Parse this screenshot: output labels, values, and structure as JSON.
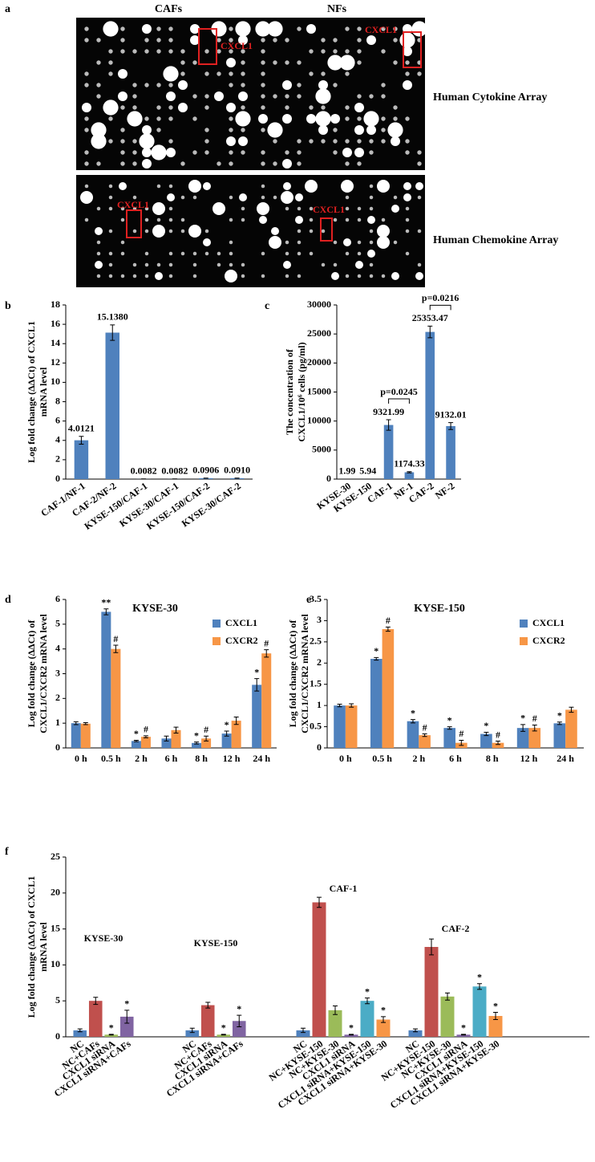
{
  "panel_a": {
    "panel": "a",
    "columns": [
      "CAFs",
      "NFs"
    ],
    "rows": [
      {
        "title": "Human Cytokine Array",
        "labels": [
          "CXCL1",
          "CXCL1"
        ]
      },
      {
        "title": "Human Chemokine Array",
        "labels": [
          "CXCL1",
          "CXCL1"
        ]
      }
    ]
  },
  "chart_data": [
    {
      "type": "bar",
      "panel": "b",
      "y_label": [
        "Log fold change (ΔΔCt) of CXCL1",
        "mRNA level"
      ],
      "categories": [
        "CAF-1/NF-1",
        "CAF-2/NF-2",
        "KYSE-150/CAF-1",
        "KYSE-30/CAF-1",
        "KYSE-150/CAF-2",
        "KYSE-30/CAF-2"
      ],
      "values": [
        4.0121,
        15.138,
        0.0082,
        0.0082,
        0.0906,
        0.091
      ],
      "value_labels": [
        "4.0121",
        "15.1380",
        "0.0082",
        "0.0082",
        "0.0906",
        "0.0910"
      ],
      "errors": [
        0.4,
        0.8,
        0.01,
        0.01,
        0.01,
        0.01
      ],
      "color": "#4f81bd",
      "ylim": [
        0,
        18
      ],
      "yticks": [
        0,
        2,
        4,
        6,
        8,
        10,
        12,
        14,
        16,
        18
      ]
    },
    {
      "type": "bar",
      "panel": "c",
      "y_label": [
        "The concentration of",
        "CXCL1/10⁶ cells  (pg/ml)"
      ],
      "categories": [
        "KYSE-30",
        "KYSE-150",
        "CAF-1",
        "NF-1",
        "CAF-2",
        "NF-2"
      ],
      "values": [
        1.99,
        5.94,
        9321.99,
        1174.33,
        25353.47,
        9132.01
      ],
      "errors": [
        0,
        0,
        900,
        100,
        1000,
        600
      ],
      "color": "#4f81bd",
      "brackets": [
        {
          "between": [
            "CAF-1",
            "NF-1"
          ],
          "label": "p=0.0245"
        },
        {
          "between": [
            "CAF-2",
            "NF-2"
          ],
          "label": "p=0.0216"
        }
      ],
      "ylim": [
        0,
        30000
      ],
      "yticks": [
        0,
        5000,
        10000,
        15000,
        20000,
        25000,
        30000
      ]
    },
    {
      "type": "grouped_bar",
      "panel": "d",
      "title": "KYSE-30",
      "y_label": [
        "Log fold change (ΔΔCt) of",
        "CXCL1/CXCR2 mRNA level"
      ],
      "categories": [
        "0 h",
        "0.5 h",
        "2 h",
        "6 h",
        "8 h",
        "12 h",
        "24 h"
      ],
      "series": [
        {
          "name": "CXCL1",
          "color": "#4f81bd",
          "values": [
            1.0,
            5.5,
            0.28,
            0.38,
            0.2,
            0.58,
            2.55
          ],
          "errors": [
            0.06,
            0.12,
            0.03,
            0.1,
            0.04,
            0.1,
            0.25
          ],
          "markers": [
            null,
            "**",
            "*",
            null,
            "*",
            "*",
            "*"
          ]
        },
        {
          "name": "CXCR2",
          "color": "#f79646",
          "values": [
            0.98,
            4.0,
            0.45,
            0.72,
            0.38,
            1.1,
            3.82
          ],
          "errors": [
            0.04,
            0.15,
            0.04,
            0.12,
            0.1,
            0.15,
            0.15
          ],
          "markers": [
            null,
            "#",
            "#",
            null,
            "#",
            null,
            "#"
          ]
        }
      ],
      "ylim": [
        0,
        6
      ],
      "yticks": [
        0,
        1,
        2,
        3,
        4,
        5,
        6
      ]
    },
    {
      "type": "grouped_bar",
      "panel": "e",
      "title": "KYSE-150",
      "y_label": [
        "Log fold change (ΔΔCt) of",
        "CXCL1/CXCR2 mRNA level"
      ],
      "categories": [
        "0 h",
        "0.5 h",
        "2 h",
        "6 h",
        "8 h",
        "12 h",
        "24 h"
      ],
      "series": [
        {
          "name": "CXCL1",
          "color": "#4f81bd",
          "values": [
            1.0,
            2.1,
            0.63,
            0.47,
            0.33,
            0.47,
            0.58
          ],
          "errors": [
            0.03,
            0.03,
            0.04,
            0.03,
            0.04,
            0.08,
            0.03
          ],
          "markers": [
            null,
            "*",
            "*",
            "*",
            "*",
            "*",
            "*"
          ]
        },
        {
          "name": "CXCR2",
          "color": "#f79646",
          "values": [
            1.0,
            2.8,
            0.3,
            0.12,
            0.12,
            0.47,
            0.9
          ],
          "errors": [
            0.04,
            0.05,
            0.03,
            0.06,
            0.04,
            0.07,
            0.06
          ],
          "markers": [
            null,
            "#",
            "#",
            "#",
            "#",
            "#",
            null
          ]
        }
      ],
      "ylim": [
        0,
        3.5
      ],
      "yticks": [
        0,
        0.5,
        1,
        1.5,
        2,
        2.5,
        3,
        3.5
      ]
    },
    {
      "type": "group_bar",
      "panel": "f",
      "y_label": [
        "Log fold change (ΔΔCt) of CXCL1",
        "mRNA level"
      ],
      "groups": [
        {
          "name": "KYSE-30",
          "categories": [
            "NC",
            "NC+CAFs",
            "CXCL1 siRNA",
            "CXCL1 siRNA+CAFs"
          ],
          "values": [
            0.9,
            5.0,
            0.3,
            2.8
          ],
          "errors": [
            0.2,
            0.5,
            0.05,
            0.9
          ],
          "colors": [
            "#4f81bd",
            "#c0504d",
            "#9bbb59",
            "#8064a2"
          ],
          "markers": [
            null,
            null,
            "*",
            "*"
          ]
        },
        {
          "name": "KYSE-150",
          "categories": [
            "NC",
            "NC+CAFs",
            "CXCL1 siRNA",
            "CXCL1 siRNA+CAFs"
          ],
          "values": [
            0.9,
            4.4,
            0.3,
            2.2
          ],
          "errors": [
            0.3,
            0.4,
            0.05,
            0.8
          ],
          "colors": [
            "#4f81bd",
            "#c0504d",
            "#9bbb59",
            "#8064a2"
          ],
          "markers": [
            null,
            null,
            "*",
            "*"
          ]
        },
        {
          "name": "CAF-1",
          "categories": [
            "NC",
            "NC+KYSE-150",
            "NC+KYSE-30",
            "CXCL1 siRNA",
            "CXCL1 siRNA+KYSE-150",
            "CXCL1 siRNA+KYSE-30"
          ],
          "values": [
            0.9,
            18.7,
            3.7,
            0.3,
            5.0,
            2.4
          ],
          "errors": [
            0.3,
            0.7,
            0.6,
            0.05,
            0.4,
            0.4
          ],
          "colors": [
            "#4f81bd",
            "#c0504d",
            "#9bbb59",
            "#8064a2",
            "#4bacc6",
            "#f79646"
          ],
          "markers": [
            null,
            null,
            null,
            "*",
            "*",
            "*"
          ]
        },
        {
          "name": "CAF-2",
          "categories": [
            "NC",
            "NC+KYSE-150",
            "NC+KYSE-30",
            "CXCL1 siRNA",
            "CXCL1 siRNA+KYSE-150",
            "CXCL1 siRNA+KYSE-30"
          ],
          "values": [
            0.9,
            12.5,
            5.6,
            0.3,
            7.0,
            2.9
          ],
          "errors": [
            0.2,
            1.1,
            0.5,
            0.05,
            0.4,
            0.5
          ],
          "colors": [
            "#4f81bd",
            "#c0504d",
            "#9bbb59",
            "#8064a2",
            "#4bacc6",
            "#f79646"
          ],
          "markers": [
            null,
            null,
            null,
            "*",
            "*",
            "*"
          ]
        }
      ],
      "ylim": [
        0,
        25
      ],
      "yticks": [
        0,
        5,
        10,
        15,
        20,
        25
      ]
    }
  ]
}
